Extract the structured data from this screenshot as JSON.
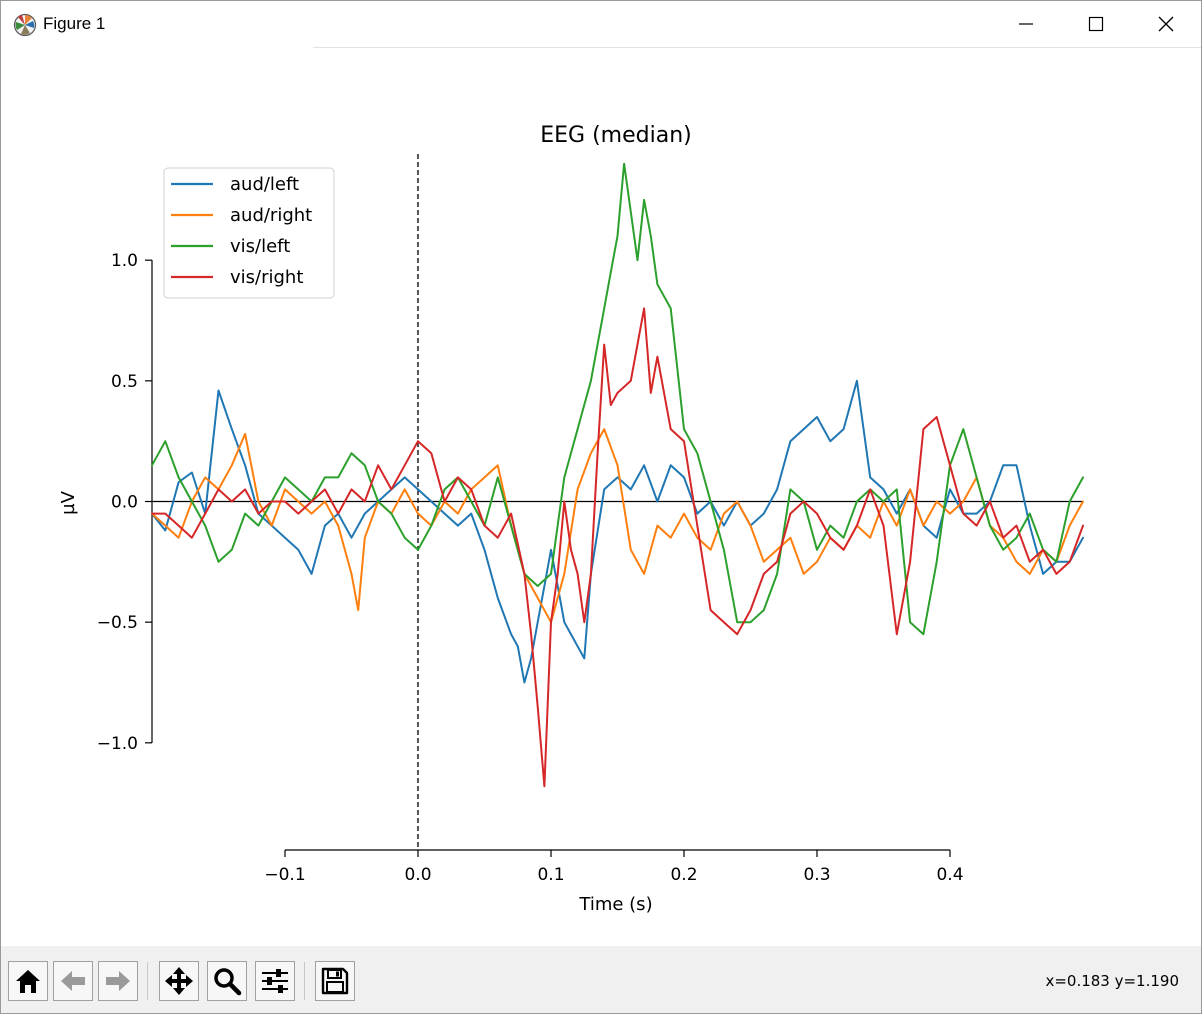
{
  "window": {
    "title": "Figure 1",
    "icons": {
      "app": "matplotlib-logo-icon",
      "minimize": "minimize-icon",
      "maximize": "maximize-icon",
      "close": "close-icon"
    }
  },
  "toolbar": {
    "buttons": [
      {
        "name": "home-button",
        "icon": "home-icon"
      },
      {
        "name": "back-button",
        "icon": "arrow-left-icon"
      },
      {
        "name": "forward-button",
        "icon": "arrow-right-icon"
      },
      {
        "name": "pan-button",
        "icon": "move-icon"
      },
      {
        "name": "zoom-button",
        "icon": "magnifier-icon"
      },
      {
        "name": "configure-subplots-button",
        "icon": "sliders-icon"
      },
      {
        "name": "save-button",
        "icon": "floppy-disk-icon"
      }
    ],
    "coords": "x=0.183 y=1.190"
  },
  "chart_data": {
    "type": "line",
    "title": "EEG (median)",
    "xlabel": "Time (s)",
    "ylabel": "µV",
    "xlim": [
      -0.2,
      0.5
    ],
    "ylim": [
      -1.44,
      1.44
    ],
    "x_ticks": [
      -0.1,
      0.0,
      0.1,
      0.2,
      0.3,
      0.4
    ],
    "x_tick_labels": [
      "−0.1",
      "0.0",
      "0.1",
      "0.2",
      "0.3",
      "0.4"
    ],
    "y_ticks": [
      -1.0,
      -0.5,
      0.0,
      0.5,
      1.0
    ],
    "y_tick_labels": [
      "−1.0",
      "−0.5",
      "0.0",
      "0.5",
      "1.0"
    ],
    "zero_line": true,
    "stimulus_line_x": 0.0,
    "legend_position": "upper-left",
    "grid": false,
    "series": [
      {
        "name": "aud/left",
        "color": "#1f77b4",
        "x": [
          -0.2,
          -0.19,
          -0.18,
          -0.17,
          -0.16,
          -0.15,
          -0.14,
          -0.13,
          -0.12,
          -0.11,
          -0.1,
          -0.09,
          -0.08,
          -0.07,
          -0.06,
          -0.05,
          -0.04,
          -0.03,
          -0.02,
          -0.01,
          0.0,
          0.01,
          0.02,
          0.03,
          0.04,
          0.05,
          0.06,
          0.07,
          0.075,
          0.08,
          0.085,
          0.09,
          0.095,
          0.1,
          0.105,
          0.11,
          0.12,
          0.125,
          0.13,
          0.14,
          0.15,
          0.16,
          0.17,
          0.18,
          0.19,
          0.2,
          0.21,
          0.22,
          0.23,
          0.24,
          0.25,
          0.26,
          0.27,
          0.28,
          0.29,
          0.3,
          0.31,
          0.32,
          0.33,
          0.34,
          0.35,
          0.36,
          0.37,
          0.38,
          0.39,
          0.4,
          0.41,
          0.42,
          0.43,
          0.44,
          0.45,
          0.46,
          0.47,
          0.48,
          0.49,
          0.5
        ],
        "y": [
          -0.05,
          -0.12,
          0.08,
          0.12,
          -0.05,
          0.46,
          0.3,
          0.15,
          -0.05,
          -0.1,
          -0.15,
          -0.2,
          -0.3,
          -0.1,
          -0.05,
          -0.15,
          -0.05,
          0.0,
          0.05,
          0.1,
          0.05,
          0.0,
          -0.05,
          -0.1,
          -0.05,
          -0.2,
          -0.4,
          -0.55,
          -0.6,
          -0.75,
          -0.65,
          -0.5,
          -0.35,
          -0.2,
          -0.35,
          -0.5,
          -0.6,
          -0.65,
          -0.3,
          0.05,
          0.1,
          0.05,
          0.15,
          0.0,
          0.15,
          0.1,
          -0.05,
          0.0,
          -0.1,
          0.0,
          -0.1,
          -0.05,
          0.05,
          0.25,
          0.3,
          0.35,
          0.25,
          0.3,
          0.5,
          0.1,
          0.05,
          -0.05,
          0.05,
          -0.1,
          -0.15,
          0.05,
          -0.05,
          -0.05,
          0.0,
          0.15,
          0.15,
          -0.1,
          -0.3,
          -0.25,
          -0.25,
          -0.15
        ]
      },
      {
        "name": "aud/right",
        "color": "#ff7f0e",
        "x": [
          -0.2,
          -0.19,
          -0.18,
          -0.17,
          -0.16,
          -0.15,
          -0.14,
          -0.13,
          -0.12,
          -0.11,
          -0.1,
          -0.09,
          -0.08,
          -0.07,
          -0.06,
          -0.05,
          -0.045,
          -0.04,
          -0.03,
          -0.02,
          -0.01,
          0.0,
          0.01,
          0.02,
          0.03,
          0.04,
          0.05,
          0.06,
          0.07,
          0.08,
          0.09,
          0.1,
          0.11,
          0.12,
          0.13,
          0.14,
          0.15,
          0.16,
          0.17,
          0.18,
          0.19,
          0.2,
          0.21,
          0.22,
          0.23,
          0.24,
          0.25,
          0.26,
          0.27,
          0.28,
          0.29,
          0.3,
          0.31,
          0.32,
          0.33,
          0.34,
          0.35,
          0.36,
          0.37,
          0.38,
          0.39,
          0.4,
          0.41,
          0.42,
          0.43,
          0.44,
          0.45,
          0.46,
          0.47,
          0.48,
          0.49,
          0.5
        ],
        "y": [
          -0.05,
          -0.1,
          -0.15,
          0.0,
          0.1,
          0.05,
          0.15,
          0.28,
          0.0,
          -0.1,
          0.05,
          0.0,
          -0.05,
          0.0,
          -0.1,
          -0.3,
          -0.45,
          -0.15,
          0.0,
          -0.05,
          0.05,
          -0.05,
          -0.1,
          0.0,
          -0.05,
          0.05,
          0.1,
          0.15,
          -0.1,
          -0.3,
          -0.4,
          -0.5,
          -0.3,
          0.05,
          0.2,
          0.3,
          0.15,
          -0.2,
          -0.3,
          -0.1,
          -0.15,
          -0.05,
          -0.15,
          -0.2,
          -0.05,
          0.0,
          -0.1,
          -0.25,
          -0.2,
          -0.15,
          -0.3,
          -0.25,
          -0.15,
          -0.2,
          -0.1,
          -0.15,
          0.0,
          -0.1,
          0.05,
          -0.1,
          0.0,
          -0.05,
          0.0,
          0.1,
          -0.1,
          -0.15,
          -0.25,
          -0.3,
          -0.2,
          -0.25,
          -0.1,
          0.0
        ]
      },
      {
        "name": "vis/left",
        "color": "#2ca02c",
        "x": [
          -0.2,
          -0.19,
          -0.18,
          -0.17,
          -0.16,
          -0.15,
          -0.14,
          -0.13,
          -0.12,
          -0.11,
          -0.1,
          -0.09,
          -0.08,
          -0.07,
          -0.06,
          -0.05,
          -0.04,
          -0.03,
          -0.02,
          -0.01,
          0.0,
          0.01,
          0.02,
          0.03,
          0.04,
          0.05,
          0.06,
          0.07,
          0.08,
          0.09,
          0.1,
          0.11,
          0.12,
          0.13,
          0.14,
          0.145,
          0.15,
          0.155,
          0.16,
          0.165,
          0.17,
          0.175,
          0.18,
          0.19,
          0.2,
          0.21,
          0.22,
          0.23,
          0.24,
          0.25,
          0.26,
          0.27,
          0.28,
          0.29,
          0.3,
          0.31,
          0.32,
          0.33,
          0.34,
          0.35,
          0.36,
          0.37,
          0.38,
          0.39,
          0.4,
          0.41,
          0.42,
          0.43,
          0.44,
          0.45,
          0.46,
          0.47,
          0.48,
          0.49,
          0.5
        ],
        "y": [
          0.15,
          0.25,
          0.1,
          0.0,
          -0.1,
          -0.25,
          -0.2,
          -0.05,
          -0.1,
          0.0,
          0.1,
          0.05,
          0.0,
          0.1,
          0.1,
          0.2,
          0.15,
          0.0,
          -0.05,
          -0.15,
          -0.2,
          -0.1,
          0.05,
          0.1,
          0.0,
          -0.1,
          0.1,
          -0.1,
          -0.3,
          -0.35,
          -0.3,
          0.1,
          0.3,
          0.5,
          0.8,
          0.95,
          1.1,
          1.4,
          1.2,
          1.0,
          1.25,
          1.1,
          0.9,
          0.8,
          0.3,
          0.2,
          0.0,
          -0.2,
          -0.5,
          -0.5,
          -0.45,
          -0.3,
          0.05,
          0.0,
          -0.2,
          -0.1,
          -0.15,
          0.0,
          0.05,
          0.0,
          0.05,
          -0.5,
          -0.55,
          -0.25,
          0.15,
          0.3,
          0.1,
          -0.1,
          -0.2,
          -0.15,
          -0.05,
          -0.2,
          -0.25,
          0.0,
          0.1
        ]
      },
      {
        "name": "vis/right",
        "color": "#d62728",
        "x": [
          -0.2,
          -0.19,
          -0.18,
          -0.17,
          -0.16,
          -0.15,
          -0.14,
          -0.13,
          -0.12,
          -0.11,
          -0.1,
          -0.09,
          -0.08,
          -0.07,
          -0.06,
          -0.05,
          -0.04,
          -0.03,
          -0.02,
          -0.01,
          0.0,
          0.01,
          0.02,
          0.03,
          0.04,
          0.05,
          0.06,
          0.07,
          0.08,
          0.085,
          0.09,
          0.095,
          0.1,
          0.105,
          0.11,
          0.115,
          0.12,
          0.125,
          0.13,
          0.135,
          0.14,
          0.145,
          0.15,
          0.16,
          0.17,
          0.175,
          0.18,
          0.19,
          0.2,
          0.21,
          0.22,
          0.23,
          0.24,
          0.25,
          0.26,
          0.27,
          0.28,
          0.29,
          0.3,
          0.31,
          0.32,
          0.33,
          0.34,
          0.35,
          0.36,
          0.37,
          0.38,
          0.39,
          0.4,
          0.41,
          0.42,
          0.43,
          0.44,
          0.45,
          0.46,
          0.47,
          0.48,
          0.49,
          0.5
        ],
        "y": [
          -0.05,
          -0.05,
          -0.1,
          -0.15,
          -0.05,
          0.05,
          0.0,
          0.05,
          -0.05,
          0.0,
          0.0,
          -0.05,
          0.0,
          0.05,
          -0.05,
          0.05,
          0.0,
          0.15,
          0.05,
          0.15,
          0.25,
          0.2,
          0.0,
          0.1,
          0.05,
          -0.1,
          -0.15,
          -0.05,
          -0.3,
          -0.55,
          -0.85,
          -1.18,
          -0.5,
          -0.3,
          0.0,
          -0.2,
          -0.3,
          -0.5,
          -0.3,
          0.2,
          0.65,
          0.4,
          0.45,
          0.5,
          0.8,
          0.45,
          0.6,
          0.3,
          0.25,
          -0.1,
          -0.45,
          -0.5,
          -0.55,
          -0.45,
          -0.3,
          -0.25,
          -0.05,
          0.0,
          -0.05,
          -0.15,
          -0.2,
          -0.1,
          0.05,
          -0.1,
          -0.55,
          -0.25,
          0.3,
          0.35,
          0.15,
          -0.05,
          -0.1,
          0.0,
          -0.15,
          -0.1,
          -0.25,
          -0.2,
          -0.3,
          -0.25,
          -0.1
        ]
      }
    ]
  }
}
